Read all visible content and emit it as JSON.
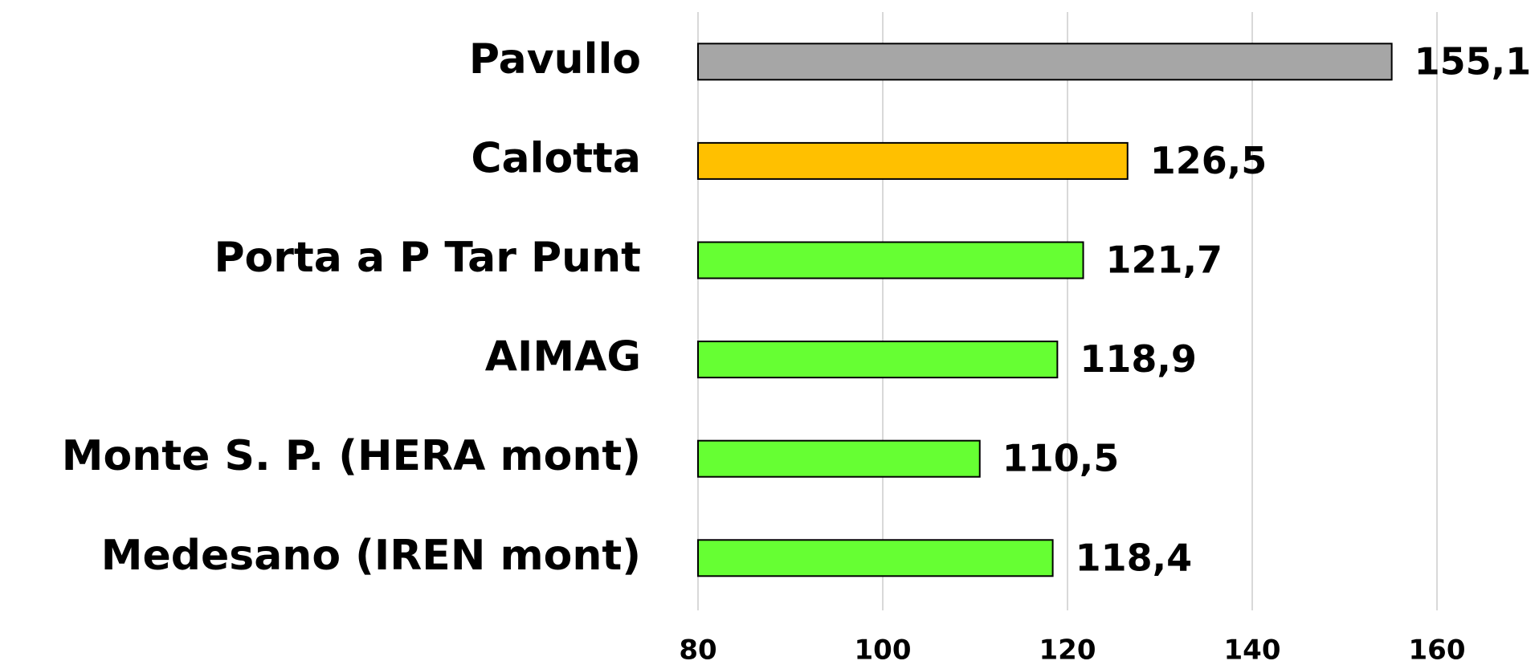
{
  "chart_data": {
    "type": "barh",
    "categories": [
      "Pavullo",
      "Calotta",
      "Porta a P Tar Punt",
      "AIMAG",
      "Monte S. P. (HERA mont)",
      "Medesano (IREN mont)"
    ],
    "values": [
      155.1,
      126.5,
      121.7,
      118.9,
      110.5,
      118.4
    ],
    "value_labels": [
      "155,1",
      "126,5",
      "121,7",
      "118,9",
      "110,5",
      "118,4"
    ],
    "colors": [
      "#a6a6a6",
      "#ffc000",
      "#66ff33",
      "#66ff33",
      "#66ff33",
      "#66ff33"
    ],
    "xlim": [
      80,
      160
    ],
    "xticks": [
      80,
      100,
      120,
      140,
      160
    ],
    "grid": true
  }
}
